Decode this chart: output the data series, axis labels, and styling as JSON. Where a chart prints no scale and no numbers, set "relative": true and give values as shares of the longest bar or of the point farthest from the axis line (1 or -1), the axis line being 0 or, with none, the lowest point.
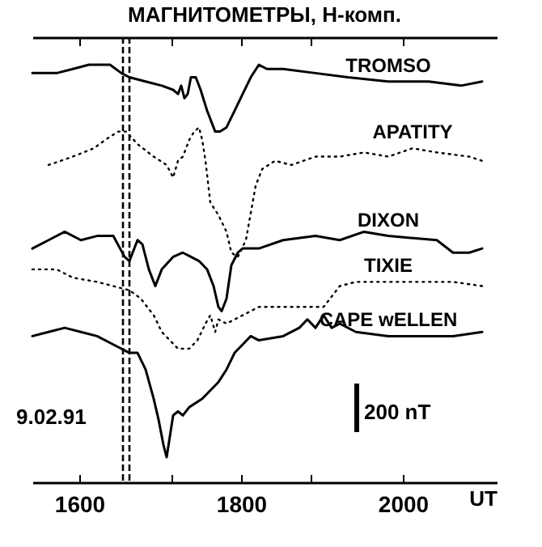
{
  "chart_data": {
    "type": "line",
    "title": "МАГНИТОМЕТРЫ, Н-комп.",
    "xlabel": "UT",
    "relative": true,
    "xlim": [
      1542,
      2116
    ],
    "xticks": [
      1600,
      {
        "value": 1714,
        "label": null
      },
      1800,
      {
        "value": 1886,
        "label": null
      },
      2000
    ],
    "series": [
      {
        "name": "TROMSO",
        "color": "#000000",
        "line_style": "solid",
        "x": [
          1542,
          1572,
          1592,
          1612,
          1626,
          1638,
          1652,
          1662,
          1682,
          1702,
          1716,
          1722,
          1726,
          1730,
          1734,
          1738,
          1744,
          1750,
          1758,
          1768,
          1774,
          1782,
          1792,
          1802,
          1812,
          1822,
          1832,
          1852,
          1892,
          1932,
          1982,
          2032,
          2072,
          2098
        ],
        "values": [
          0.98,
          0.98,
          0.99,
          1.0,
          1.0,
          1.0,
          0.98,
          0.97,
          0.96,
          0.95,
          0.94,
          0.93,
          0.95,
          0.92,
          0.93,
          0.97,
          0.97,
          0.94,
          0.89,
          0.84,
          0.84,
          0.85,
          0.89,
          0.93,
          0.97,
          1.0,
          0.99,
          0.99,
          0.98,
          0.97,
          0.96,
          0.96,
          0.95,
          0.96
        ]
      },
      {
        "name": "APATITY",
        "color": "#000000",
        "line_style": "dotted",
        "x": [
          1562,
          1592,
          1618,
          1632,
          1648,
          1658,
          1672,
          1692,
          1708,
          1716,
          1722,
          1728,
          1736,
          1742,
          1748,
          1752,
          1756,
          1762,
          1772,
          1782,
          1788,
          1796,
          1806,
          1818,
          1826,
          1842,
          1862,
          1892,
          1922,
          1952,
          1982,
          2012,
          2042,
          2082,
          2098
        ],
        "values": [
          0.76,
          0.78,
          0.8,
          0.82,
          0.84,
          0.84,
          0.81,
          0.78,
          0.76,
          0.73,
          0.77,
          0.78,
          0.82,
          0.84,
          0.85,
          0.82,
          0.77,
          0.67,
          0.64,
          0.6,
          0.55,
          0.54,
          0.58,
          0.71,
          0.75,
          0.77,
          0.76,
          0.78,
          0.78,
          0.79,
          0.78,
          0.8,
          0.79,
          0.78,
          0.77
        ]
      },
      {
        "name": "DIXON",
        "color": "#000000",
        "line_style": "solid",
        "x": [
          1542,
          1562,
          1582,
          1602,
          1622,
          1642,
          1656,
          1662,
          1672,
          1678,
          1686,
          1694,
          1702,
          1716,
          1728,
          1738,
          1748,
          1758,
          1766,
          1772,
          1776,
          1782,
          1788,
          1796,
          1802,
          1822,
          1852,
          1892,
          1922,
          1952,
          1982,
          2042,
          2062,
          2082,
          2098
        ],
        "values": [
          0.56,
          0.58,
          0.6,
          0.58,
          0.59,
          0.59,
          0.54,
          0.53,
          0.58,
          0.57,
          0.51,
          0.47,
          0.51,
          0.54,
          0.55,
          0.54,
          0.53,
          0.51,
          0.47,
          0.42,
          0.41,
          0.44,
          0.52,
          0.55,
          0.56,
          0.56,
          0.58,
          0.59,
          0.58,
          0.6,
          0.59,
          0.58,
          0.55,
          0.55,
          0.56
        ]
      },
      {
        "name": "TIXIE",
        "color": "#000000",
        "line_style": "dotted",
        "x": [
          1542,
          1572,
          1592,
          1622,
          1642,
          1662,
          1676,
          1692,
          1702,
          1722,
          1736,
          1746,
          1756,
          1762,
          1768,
          1772,
          1782,
          1802,
          1822,
          1862,
          1902,
          1922,
          1942,
          1982,
          2022,
          2062,
          2098
        ],
        "values": [
          0.51,
          0.51,
          0.49,
          0.48,
          0.47,
          0.46,
          0.44,
          0.4,
          0.36,
          0.32,
          0.32,
          0.34,
          0.38,
          0.4,
          0.36,
          0.39,
          0.38,
          0.4,
          0.42,
          0.42,
          0.42,
          0.47,
          0.48,
          0.48,
          0.48,
          0.48,
          0.47
        ]
      },
      {
        "name": "CAPE wELLEN",
        "color": "#000000",
        "line_style": "solid",
        "x": [
          1542,
          1562,
          1582,
          1602,
          1622,
          1642,
          1662,
          1672,
          1682,
          1692,
          1698,
          1704,
          1708,
          1712,
          1716,
          1722,
          1728,
          1736,
          1752,
          1762,
          1772,
          1782,
          1792,
          1802,
          1812,
          1822,
          1852,
          1872,
          1882,
          1892,
          1902,
          1912,
          1922,
          1942,
          1982,
          2022,
          2062,
          2098
        ],
        "values": [
          0.35,
          0.36,
          0.37,
          0.36,
          0.35,
          0.33,
          0.31,
          0.31,
          0.27,
          0.2,
          0.15,
          0.09,
          0.06,
          0.11,
          0.16,
          0.17,
          0.16,
          0.18,
          0.2,
          0.22,
          0.24,
          0.27,
          0.31,
          0.33,
          0.35,
          0.34,
          0.35,
          0.37,
          0.39,
          0.37,
          0.4,
          0.37,
          0.38,
          0.36,
          0.35,
          0.35,
          0.35,
          0.36
        ]
      }
    ],
    "ref_lines": [
      {
        "axis": "x",
        "value": 1654,
        "line_style": "dashed",
        "color": "#000000"
      },
      {
        "axis": "x",
        "value": 1662,
        "line_style": "dashed",
        "color": "#000000"
      }
    ],
    "annotations": [
      "9.02.91",
      "200 nT"
    ]
  }
}
